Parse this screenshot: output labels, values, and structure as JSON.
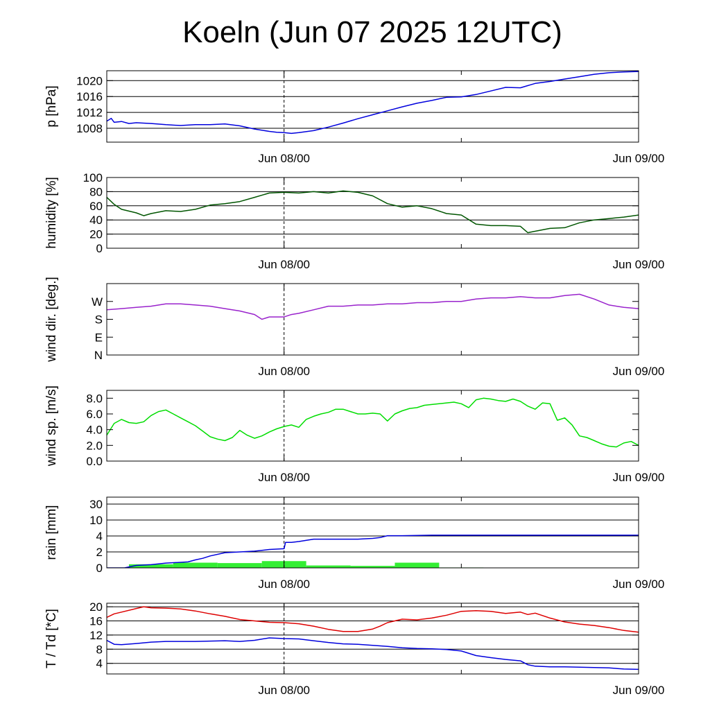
{
  "title": "Koeln (Jun 07 2025 12UTC)",
  "x_axis": {
    "tick_labels": [
      {
        "label": "Jun 08/00",
        "hour": 12
      },
      {
        "label": "Jun 09/00",
        "hour": 36
      }
    ],
    "range_hours": [
      0,
      36
    ],
    "vertical_dashed_at_hour": 12
  },
  "chart_data": [
    {
      "type": "line",
      "id": "pressure",
      "ylabel": "p [hPa]",
      "ylim": [
        1004.5,
        1022.5
      ],
      "yticks": [
        1008,
        1012,
        1016,
        1020
      ],
      "ytick_labels": [
        "1008",
        "1012",
        "1016",
        "1020"
      ],
      "grid": true,
      "color": "#0000dd",
      "x": [
        0,
        0.3,
        0.5,
        1,
        1.5,
        2,
        3,
        4,
        5,
        6,
        7,
        8,
        9,
        10,
        11,
        11.5,
        12,
        12.5,
        13,
        14,
        15,
        16,
        17,
        18,
        19,
        20,
        21,
        22,
        23,
        24,
        25,
        26,
        27,
        28,
        29,
        30,
        31,
        32,
        33,
        34,
        35,
        36
      ],
      "y": [
        1009.8,
        1010.5,
        1009.5,
        1009.7,
        1009.2,
        1009.4,
        1009.2,
        1008.9,
        1008.7,
        1008.9,
        1008.9,
        1009.1,
        1008.6,
        1007.8,
        1007.2,
        1007.0,
        1006.9,
        1006.7,
        1006.9,
        1007.4,
        1008.3,
        1009.3,
        1010.4,
        1011.4,
        1012.4,
        1013.4,
        1014.3,
        1015.0,
        1015.8,
        1015.9,
        1016.5,
        1017.4,
        1018.3,
        1018.2,
        1019.3,
        1019.8,
        1020.4,
        1021.0,
        1021.6,
        1022.0,
        1022.2,
        1022.3
      ]
    },
    {
      "type": "line",
      "id": "humidity",
      "ylabel": "humidity [%]",
      "ylim": [
        0,
        100
      ],
      "yticks": [
        0,
        20,
        40,
        60,
        80,
        100
      ],
      "ytick_labels": [
        "0",
        "20",
        "40",
        "60",
        "80",
        "100"
      ],
      "grid": true,
      "color": "#005500",
      "x": [
        0,
        0.5,
        1,
        2,
        2.5,
        3,
        4,
        5,
        6,
        7,
        8,
        9,
        10,
        11,
        12,
        13,
        14,
        15,
        16,
        17,
        18,
        19,
        20,
        21,
        22,
        23,
        24,
        25,
        26,
        27,
        28,
        28.5,
        29,
        30,
        31,
        32,
        33,
        34,
        35,
        36
      ],
      "y": [
        72,
        62,
        55,
        50,
        46,
        49,
        53,
        52,
        55,
        61,
        63,
        66,
        72,
        78,
        79,
        78,
        80,
        78,
        81,
        79,
        74,
        63,
        58,
        60,
        56,
        49,
        47,
        34,
        32,
        32,
        31,
        22,
        24,
        28,
        29,
        36,
        40,
        42,
        44,
        47
      ]
    },
    {
      "type": "line",
      "id": "wind_direction",
      "ylabel": "wind dir. [deg.]",
      "ylim": [
        0,
        300
      ],
      "yticks": [
        0,
        75,
        150,
        225
      ],
      "ytick_labels": [
        "N",
        "E",
        "S",
        "W"
      ],
      "grid": false,
      "color": "#9922cc",
      "x": [
        0,
        1,
        2,
        3,
        4,
        5,
        6,
        7,
        8,
        9,
        10,
        10.5,
        11,
        12,
        12.5,
        13,
        14,
        15,
        16,
        17,
        18,
        19,
        20,
        21,
        22,
        23,
        24,
        25,
        26,
        27,
        28,
        29,
        30,
        31,
        32,
        33,
        34,
        35,
        36
      ],
      "y": [
        190,
        195,
        200,
        205,
        215,
        215,
        210,
        205,
        195,
        185,
        170,
        150,
        160,
        160,
        170,
        175,
        190,
        205,
        205,
        210,
        210,
        215,
        215,
        220,
        220,
        225,
        225,
        235,
        240,
        240,
        245,
        240,
        240,
        250,
        255,
        235,
        210,
        200,
        195
      ]
    },
    {
      "type": "line",
      "id": "wind_speed",
      "ylabel": "wind sp. [m/s]",
      "ylim": [
        0,
        9
      ],
      "yticks": [
        0,
        2,
        4,
        6,
        8
      ],
      "ytick_labels": [
        "0.0",
        "2.0",
        "4.0",
        "6.0",
        "8.0"
      ],
      "grid": false,
      "color": "#00dd00",
      "x": [
        0,
        0.5,
        1,
        1.5,
        2,
        2.5,
        3,
        3.5,
        4,
        4.5,
        5,
        5.5,
        6,
        6.5,
        7,
        7.5,
        8,
        8.5,
        9,
        9.5,
        10,
        10.5,
        11,
        11.5,
        12,
        12.5,
        13,
        13.5,
        14,
        14.5,
        15,
        15.5,
        16,
        16.5,
        17,
        17.5,
        18,
        18.5,
        19,
        19.5,
        20,
        20.5,
        21,
        21.5,
        22,
        22.5,
        23,
        23.5,
        24,
        24.5,
        25,
        25.5,
        26,
        26.5,
        27,
        27.5,
        28,
        28.5,
        29,
        29.5,
        30,
        30.5,
        31,
        31.5,
        32,
        32.5,
        33,
        33.5,
        34,
        34.5,
        35,
        35.5,
        36
      ],
      "y": [
        3.3,
        4.8,
        5.3,
        4.9,
        4.8,
        5.0,
        5.8,
        6.3,
        6.5,
        6.0,
        5.5,
        5.0,
        4.5,
        3.8,
        3.1,
        2.8,
        2.6,
        3.0,
        3.9,
        3.3,
        2.9,
        3.2,
        3.7,
        4.1,
        4.4,
        4.6,
        4.3,
        5.3,
        5.7,
        6.0,
        6.2,
        6.6,
        6.6,
        6.3,
        6.0,
        6.0,
        6.1,
        6.0,
        5.1,
        6.0,
        6.4,
        6.7,
        6.8,
        7.1,
        7.2,
        7.3,
        7.4,
        7.5,
        7.3,
        6.8,
        7.8,
        8.0,
        7.9,
        7.7,
        7.6,
        7.9,
        7.6,
        7.0,
        6.6,
        7.4,
        7.3,
        5.2,
        5.5,
        4.6,
        3.2,
        3.0,
        2.6,
        2.2,
        1.9,
        1.8,
        2.3,
        2.5,
        2.0
      ]
    },
    {
      "type": "bar+line",
      "id": "rain",
      "ylabel": "rain [mm]",
      "scale": "log-like",
      "yticks": [
        0,
        2,
        4,
        10,
        30
      ],
      "ytick_labels": [
        "0",
        "2",
        "4",
        "10",
        "30"
      ],
      "grid": true,
      "bar_color": "#33ee33",
      "line_color": "#0000dd",
      "bars": [
        {
          "x0": 1.5,
          "x1": 4.5,
          "value": 0.45
        },
        {
          "x0": 4.5,
          "x1": 7.5,
          "value": 0.65
        },
        {
          "x0": 7.5,
          "x1": 10.5,
          "value": 0.6
        },
        {
          "x0": 10.5,
          "x1": 13.5,
          "value": 0.85
        },
        {
          "x0": 13.5,
          "x1": 16.5,
          "value": 0.3
        },
        {
          "x0": 16.5,
          "x1": 19.5,
          "value": 0.25
        },
        {
          "x0": 19.5,
          "x1": 22.5,
          "value": 0.65
        },
        {
          "x0": 22.5,
          "x1": 25.5,
          "value": 0.05
        }
      ],
      "x": [
        0,
        1.2,
        2,
        3,
        3.5,
        4,
        5,
        5.5,
        6,
        6.5,
        7,
        8,
        9,
        10,
        10.5,
        11,
        12,
        12.1,
        12.5,
        13,
        14,
        15,
        16,
        17,
        18,
        18.5,
        19,
        20,
        21,
        22,
        24,
        26,
        28,
        30,
        32,
        34,
        36
      ],
      "y": [
        0,
        0,
        0.3,
        0.4,
        0.5,
        0.6,
        0.7,
        0.75,
        1.0,
        1.2,
        1.5,
        1.9,
        2.0,
        2.1,
        2.2,
        2.3,
        2.4,
        3.2,
        3.2,
        3.3,
        3.6,
        3.6,
        3.6,
        3.6,
        3.7,
        3.8,
        4.1,
        4.1,
        4.2,
        4.3,
        4.3,
        4.3,
        4.3,
        4.3,
        4.3,
        4.3,
        4.3
      ]
    },
    {
      "type": "line",
      "id": "temperature_dewpoint",
      "ylabel": "T / Td [*C]",
      "ylim": [
        1,
        21
      ],
      "yticks": [
        4,
        8,
        12,
        16,
        20
      ],
      "ytick_labels": [
        "4",
        "8",
        "12",
        "16",
        "20"
      ],
      "grid": true,
      "series": [
        {
          "color": "#dd0000",
          "x": [
            0,
            0.5,
            1,
            2,
            2.5,
            3,
            4,
            5,
            6,
            7,
            8,
            9,
            10,
            11,
            12,
            13,
            14,
            15,
            16,
            17,
            18,
            18.5,
            19,
            20,
            21,
            22,
            23,
            24,
            25,
            26,
            27,
            28,
            28.5,
            29,
            30,
            31,
            32,
            33,
            34,
            35,
            36
          ],
          "y": [
            17,
            18,
            18.5,
            19.5,
            20,
            19.7,
            19.6,
            19.4,
            18.8,
            18.0,
            17.3,
            16.4,
            16.0,
            15.6,
            15.5,
            15.2,
            14.5,
            13.6,
            13.0,
            13.0,
            13.7,
            14.5,
            15.5,
            16.5,
            16.3,
            16.8,
            17.6,
            18.7,
            18.9,
            18.7,
            18.1,
            18.5,
            17.8,
            18.2,
            16.8,
            15.7,
            15.1,
            14.7,
            14.1,
            13.3,
            12.8
          ]
        },
        {
          "color": "#0000dd",
          "x": [
            0,
            0.5,
            1,
            2,
            3,
            4,
            5,
            6,
            7,
            8,
            9,
            10,
            11,
            12,
            13,
            14,
            15,
            16,
            17,
            18,
            19,
            20,
            21,
            22,
            23,
            24,
            25,
            26,
            27,
            28,
            28.5,
            29,
            30,
            31,
            32,
            33,
            34,
            35,
            36
          ],
          "y": [
            10.5,
            9.4,
            9.3,
            9.6,
            10.0,
            10.2,
            10.2,
            10.2,
            10.3,
            10.4,
            10.2,
            10.5,
            11.2,
            11.0,
            10.9,
            10.4,
            9.9,
            9.5,
            9.4,
            9.1,
            8.8,
            8.4,
            8.2,
            8.1,
            7.9,
            7.5,
            6.2,
            5.6,
            5.1,
            4.7,
            3.6,
            3.2,
            3.0,
            3.0,
            2.9,
            2.8,
            2.7,
            2.4,
            2.3
          ]
        }
      ]
    }
  ]
}
